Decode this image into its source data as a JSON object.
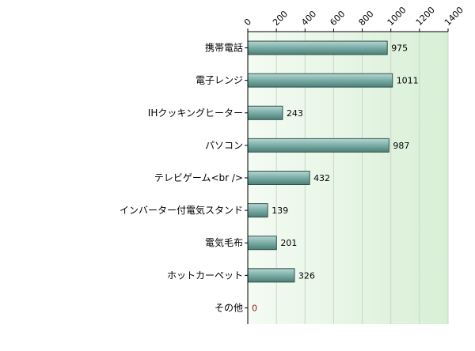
{
  "chart_data": {
    "type": "bar",
    "orientation": "horizontal",
    "categories": [
      "携帯電話",
      "電子レンジ",
      "IHクッキングヒーター",
      "パソコン",
      "テレビゲーム<br />",
      "インバーター付電気スタンド",
      "電気毛布",
      "ホットカーペット",
      "その他"
    ],
    "values": [
      975,
      1011,
      243,
      987,
      432,
      139,
      201,
      326,
      0
    ],
    "value_labels": [
      "975",
      "1011",
      "243",
      "987",
      "432",
      "139",
      "201",
      "326",
      "0"
    ],
    "xlim": [
      0,
      1400
    ],
    "x_ticks": [
      "0",
      "200",
      "400",
      "600",
      "800",
      "1000",
      "1200",
      "1400"
    ],
    "x_axis_position": "top",
    "grid": true,
    "legend": "none",
    "colors": {
      "bar_light": "#b8d8d4",
      "bar_mid": "#7fb0aa",
      "bar_dark": "#4d7f79",
      "bar_stroke": "#2f4f4b",
      "zero_label": "#8b1a1a",
      "gradient_start": "#f4fbf3",
      "gradient_end": "#d8efd6"
    }
  }
}
